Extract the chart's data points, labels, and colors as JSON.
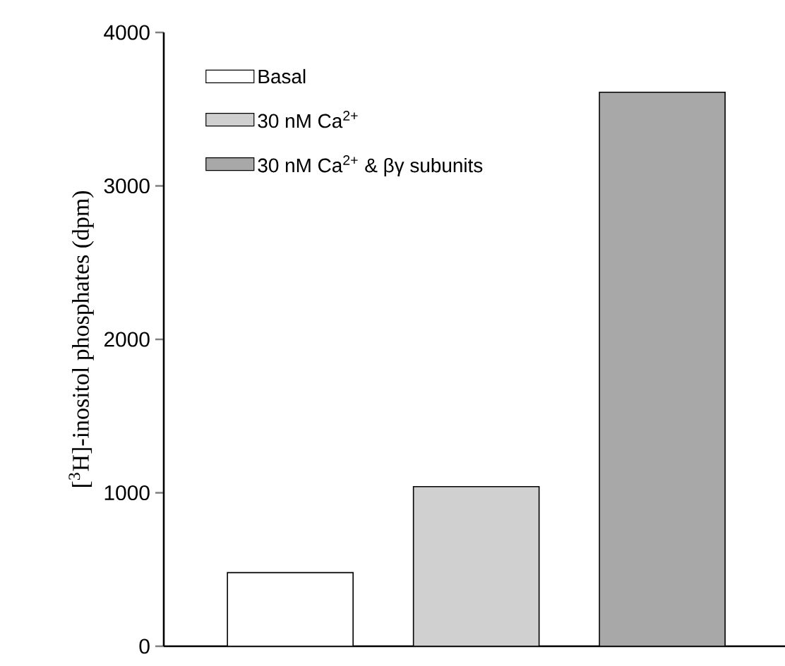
{
  "chart_data": {
    "type": "bar",
    "ylabel": "[$^{3}$H]-inositol  phosphates (dpm)",
    "categories": [
      null,
      null,
      null
    ],
    "series": [
      {
        "name": "Basal",
        "color": "#ffffff",
        "values": [
          480,
          null,
          null
        ]
      },
      {
        "name": "30 nM Ca$^{2+}$",
        "color": "#d0d0d0",
        "values": [
          null,
          1040,
          null
        ]
      },
      {
        "name": "30 nM Ca$^{2+}$ & βγ subunits",
        "color": "#a8a8a8",
        "values": [
          null,
          null,
          3610
        ]
      }
    ],
    "ylim": [
      0,
      4000
    ],
    "yticks": [
      0,
      1000,
      2000,
      3000,
      4000
    ],
    "legend": "top left",
    "tick_labels": "y",
    "grid": false
  }
}
